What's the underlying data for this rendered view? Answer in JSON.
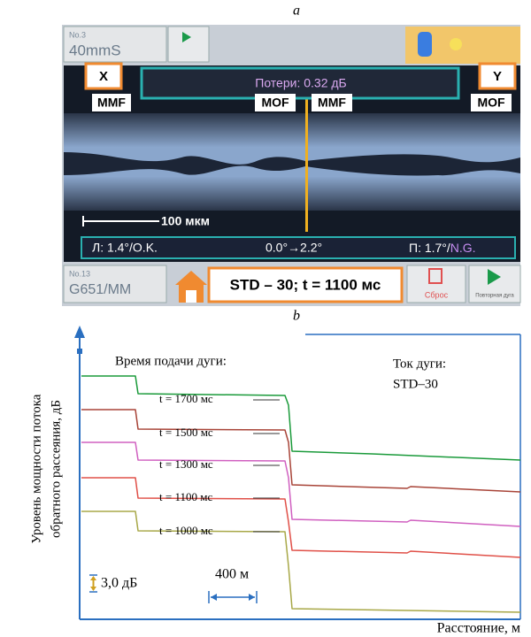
{
  "panel_a": {
    "label": "a",
    "screen": {
      "preset_no": "No.3",
      "preset": "40mmS",
      "left_marker": "X",
      "right_marker": "Y",
      "fiber_labels": [
        "MMF",
        "MOF",
        "MMF",
        "MOF"
      ],
      "loss": "Потери: 0.32 дБ",
      "scale": "100 мкм",
      "left_angle": "Л: 1.4°/O.K.",
      "angle_change": "0.0°→2.2°",
      "right_angle": "П: 1.7°/",
      "right_status": "N.G.",
      "fiber_no": "No.13",
      "fiber_type": "G651/MM",
      "mode": "STD – 30; t = 1100 мс",
      "reset": "Сброс",
      "repeat": "Повторная дуга"
    }
  },
  "panel_b": {
    "label": "b",
    "y_label_lines": [
      "Уровень мощности потока",
      "обратного рассеяния, дБ"
    ],
    "x_label": "Расстояние, м",
    "time_heading": "Время подачи дуги:",
    "current_heading": "Ток дуги:",
    "current": "STD–30",
    "traces": [
      "t = 1700 мс",
      "t = 1500 мс",
      "t = 1300 мс",
      "t = 1100 мс",
      "t = 1000 мс"
    ],
    "scale_db": "3,0 дБ",
    "scale_m": "400 м"
  }
}
